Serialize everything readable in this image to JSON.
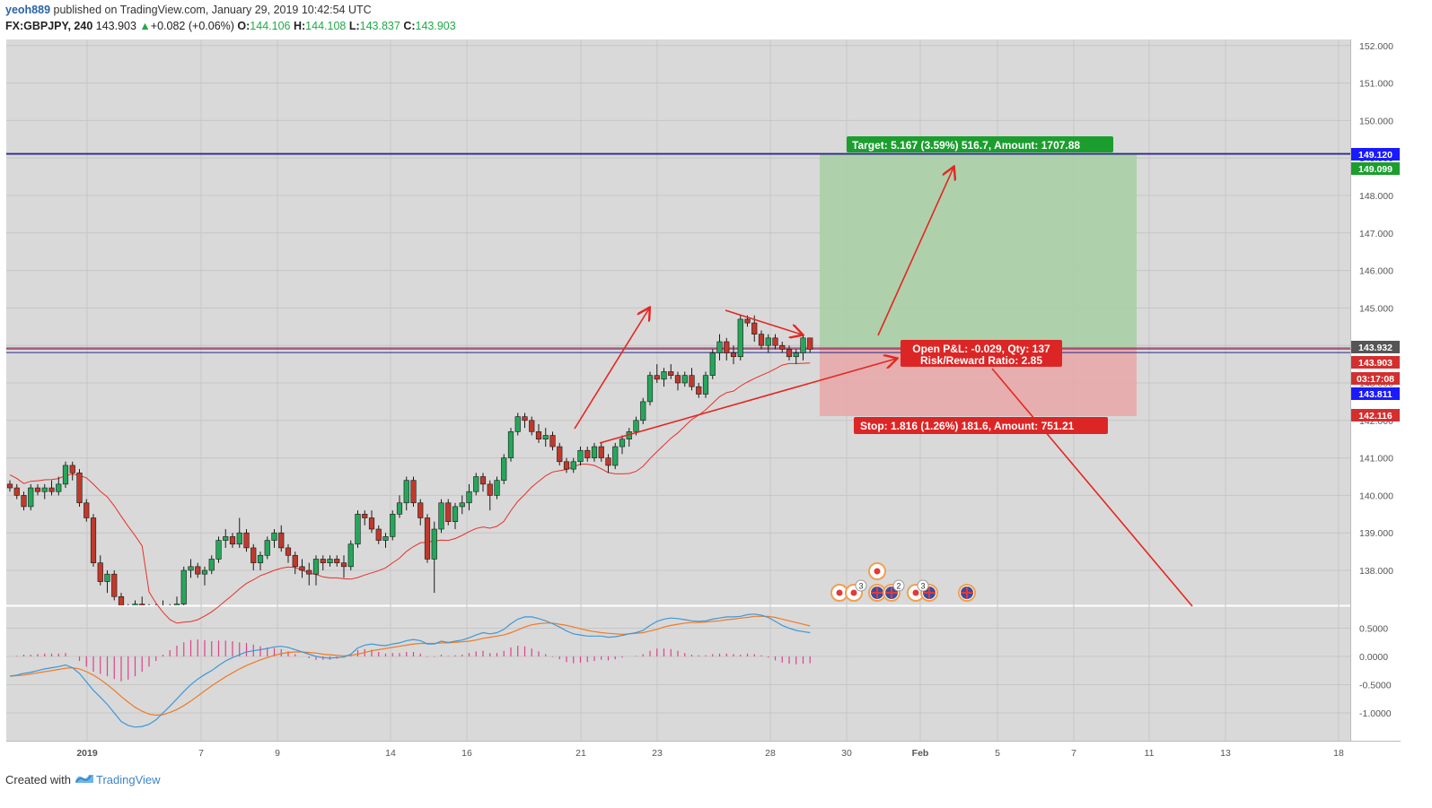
{
  "header": {
    "user": "yeoh889",
    "published_text": " published on TradingView.com, January 29, 2019 10:42:54 UTC",
    "symbol": "FX:GBPJPY, 240",
    "last": "143.903",
    "change_arrow": "▲",
    "change": "+0.082 (+0.06%)",
    "o_label": "O:",
    "o_value": "144.106",
    "h_label": "H:",
    "h_value": "144.108",
    "l_label": "L:",
    "l_value": "143.837",
    "c_label": "C:",
    "c_value": "143.903"
  },
  "footer": {
    "created_with": "Created with",
    "brand": "TradingView"
  },
  "colors": {
    "up": "#26a65b",
    "down": "#c0392b",
    "ma": "#e8302a",
    "macd": "#3d98d8",
    "signal": "#f07a25",
    "hist": "#e0408a",
    "target_zone": "#a9cfa5",
    "stop_zone": "#e7a9a8",
    "arrow": "#e52620"
  },
  "chart_data": {
    "type": "candlestick",
    "symbol": "FX:GBPJPY",
    "timeframe": "240",
    "price_axis": {
      "ticks": [
        138.0,
        139.0,
        140.0,
        141.0,
        142.0,
        143.0,
        144.0,
        145.0,
        146.0,
        147.0,
        148.0,
        149.0,
        150.0,
        151.0,
        152.0
      ],
      "decimals": 3
    },
    "x_axis_labels": [
      "2019",
      "7",
      "9",
      "14",
      "16",
      "21",
      "23",
      "28",
      "30",
      "Feb",
      "5",
      "7",
      "11",
      "13",
      "18"
    ],
    "price_tags": [
      {
        "value": "149.120",
        "color": "#1a1aff"
      },
      {
        "value": "149.099",
        "color": "#1b9e2e"
      },
      {
        "value": "143.932",
        "color": "#555555"
      },
      {
        "value": "143.903",
        "color": "#d32f2f"
      },
      {
        "value": "03:17:08",
        "color": "#d32f2f"
      },
      {
        "value": "143.811",
        "color": "#1a1aff"
      },
      {
        "value": "142.116",
        "color": "#d32f2f"
      }
    ],
    "position": {
      "entry": 143.932,
      "target": 149.099,
      "stop": 142.116,
      "target_label": "Target: 5.167 (3.59%) 516.7, Amount: 1707.88",
      "stop_label": "Stop: 1.816 (1.26%) 181.6, Amount: 751.21",
      "pnl_label": "Open P&L: -0.029, Qty: 137",
      "rr_label": "Risk/Reward Ratio: 2.85"
    },
    "horizontal_lines": [
      149.12,
      149.099,
      143.932,
      143.903,
      143.811
    ],
    "event_badges": [
      "3",
      "2",
      "3"
    ],
    "candles": [
      [
        140.3,
        140.4,
        140.1,
        140.2
      ],
      [
        140.2,
        140.3,
        139.9,
        140.0
      ],
      [
        140.0,
        140.1,
        139.6,
        139.7
      ],
      [
        139.7,
        140.3,
        139.6,
        140.2
      ],
      [
        140.2,
        140.3,
        140.0,
        140.1
      ],
      [
        140.1,
        140.3,
        139.9,
        140.2
      ],
      [
        140.2,
        140.4,
        140.0,
        140.1
      ],
      [
        140.1,
        140.5,
        140.0,
        140.3
      ],
      [
        140.3,
        140.9,
        140.2,
        140.8
      ],
      [
        140.8,
        140.9,
        140.4,
        140.6
      ],
      [
        140.6,
        140.7,
        139.7,
        139.8
      ],
      [
        139.8,
        139.9,
        139.3,
        139.4
      ],
      [
        139.4,
        139.5,
        138.1,
        138.2
      ],
      [
        138.2,
        138.4,
        137.6,
        137.7
      ],
      [
        137.7,
        138.0,
        137.4,
        137.9
      ],
      [
        137.9,
        138.0,
        137.2,
        137.3
      ],
      [
        137.3,
        137.4,
        136.6,
        136.8
      ],
      [
        136.8,
        137.1,
        136.6,
        137.0
      ],
      [
        137.0,
        137.2,
        136.8,
        137.1
      ],
      [
        137.1,
        137.3,
        136.9,
        137.0
      ],
      [
        137.0,
        137.1,
        136.7,
        136.9
      ],
      [
        136.9,
        137.1,
        136.7,
        137.0
      ],
      [
        137.0,
        137.2,
        136.8,
        136.9
      ],
      [
        136.9,
        137.1,
        136.8,
        137.0
      ],
      [
        137.0,
        137.3,
        136.9,
        137.1
      ],
      [
        137.1,
        138.1,
        137.0,
        138.0
      ],
      [
        138.0,
        138.3,
        137.8,
        138.1
      ],
      [
        138.1,
        138.2,
        137.8,
        137.9
      ],
      [
        137.9,
        138.1,
        137.6,
        138.0
      ],
      [
        138.0,
        138.4,
        137.9,
        138.3
      ],
      [
        138.3,
        138.9,
        138.2,
        138.8
      ],
      [
        138.8,
        139.1,
        138.6,
        138.9
      ],
      [
        138.9,
        139.0,
        138.6,
        138.7
      ],
      [
        138.7,
        139.4,
        138.6,
        139.0
      ],
      [
        139.0,
        139.1,
        138.5,
        138.6
      ],
      [
        138.6,
        138.7,
        138.0,
        138.2
      ],
      [
        138.2,
        138.5,
        138.0,
        138.4
      ],
      [
        138.4,
        138.9,
        138.3,
        138.8
      ],
      [
        138.8,
        139.1,
        138.6,
        139.0
      ],
      [
        139.0,
        139.2,
        138.5,
        138.6
      ],
      [
        138.6,
        138.7,
        138.2,
        138.4
      ],
      [
        138.4,
        138.5,
        137.9,
        138.1
      ],
      [
        138.1,
        138.3,
        137.8,
        138.0
      ],
      [
        138.0,
        138.2,
        137.6,
        137.9
      ],
      [
        137.9,
        138.4,
        137.6,
        138.3
      ],
      [
        138.3,
        138.4,
        138.0,
        138.2
      ],
      [
        138.2,
        138.4,
        138.1,
        138.3
      ],
      [
        138.3,
        138.4,
        138.1,
        138.2
      ],
      [
        138.2,
        138.4,
        137.8,
        138.1
      ],
      [
        138.1,
        138.8,
        138.0,
        138.7
      ],
      [
        138.7,
        139.6,
        138.6,
        139.5
      ],
      [
        139.5,
        139.6,
        139.2,
        139.4
      ],
      [
        139.4,
        139.6,
        139.0,
        139.1
      ],
      [
        139.1,
        139.2,
        138.7,
        138.8
      ],
      [
        138.8,
        139.0,
        138.6,
        138.9
      ],
      [
        138.9,
        139.6,
        138.8,
        139.5
      ],
      [
        139.5,
        140.0,
        139.4,
        139.8
      ],
      [
        139.8,
        140.5,
        139.6,
        140.4
      ],
      [
        140.4,
        140.5,
        139.7,
        139.8
      ],
      [
        139.8,
        139.9,
        139.2,
        139.4
      ],
      [
        139.4,
        139.5,
        138.2,
        138.3
      ],
      [
        138.3,
        139.3,
        137.4,
        139.1
      ],
      [
        139.1,
        139.9,
        139.0,
        139.8
      ],
      [
        139.8,
        139.9,
        139.2,
        139.3
      ],
      [
        139.3,
        139.8,
        139.1,
        139.7
      ],
      [
        139.7,
        140.0,
        139.5,
        139.8
      ],
      [
        139.8,
        140.3,
        139.6,
        140.1
      ],
      [
        140.1,
        140.6,
        140.0,
        140.5
      ],
      [
        140.5,
        140.6,
        140.1,
        140.3
      ],
      [
        140.3,
        140.4,
        139.6,
        140.0
      ],
      [
        140.0,
        140.5,
        139.9,
        140.4
      ],
      [
        140.4,
        141.1,
        140.3,
        141.0
      ],
      [
        141.0,
        141.8,
        140.9,
        141.7
      ],
      [
        141.7,
        142.2,
        141.6,
        142.1
      ],
      [
        142.1,
        142.2,
        141.8,
        142.0
      ],
      [
        142.0,
        142.1,
        141.6,
        141.7
      ],
      [
        141.7,
        141.9,
        141.4,
        141.5
      ],
      [
        141.5,
        141.8,
        141.3,
        141.6
      ],
      [
        141.6,
        141.7,
        141.2,
        141.3
      ],
      [
        141.3,
        141.4,
        140.8,
        140.9
      ],
      [
        140.9,
        141.0,
        140.6,
        140.7
      ],
      [
        140.7,
        141.0,
        140.6,
        140.9
      ],
      [
        140.9,
        141.3,
        140.8,
        141.2
      ],
      [
        141.2,
        141.3,
        140.9,
        141.0
      ],
      [
        141.0,
        141.4,
        140.9,
        141.3
      ],
      [
        141.3,
        141.4,
        140.9,
        141.0
      ],
      [
        141.0,
        141.1,
        140.6,
        140.8
      ],
      [
        140.8,
        141.4,
        140.7,
        141.3
      ],
      [
        141.3,
        141.6,
        141.1,
        141.5
      ],
      [
        141.5,
        141.8,
        141.3,
        141.7
      ],
      [
        141.7,
        142.1,
        141.6,
        142.0
      ],
      [
        142.0,
        142.6,
        141.9,
        142.5
      ],
      [
        142.5,
        143.3,
        142.4,
        143.2
      ],
      [
        143.2,
        143.5,
        143.0,
        143.1
      ],
      [
        143.1,
        143.4,
        142.9,
        143.3
      ],
      [
        143.3,
        143.5,
        143.1,
        143.2
      ],
      [
        143.2,
        143.3,
        142.8,
        143.0
      ],
      [
        143.0,
        143.3,
        142.9,
        143.2
      ],
      [
        143.2,
        143.4,
        142.8,
        142.9
      ],
      [
        142.9,
        143.0,
        142.6,
        142.7
      ],
      [
        142.7,
        143.3,
        142.6,
        143.2
      ],
      [
        143.2,
        143.9,
        143.1,
        143.8
      ],
      [
        143.8,
        144.3,
        143.6,
        144.1
      ],
      [
        144.1,
        144.2,
        143.6,
        143.8
      ],
      [
        143.8,
        144.0,
        143.5,
        143.7
      ],
      [
        143.7,
        144.8,
        143.6,
        144.7
      ],
      [
        144.7,
        144.8,
        144.5,
        144.6
      ],
      [
        144.6,
        144.8,
        144.1,
        144.3
      ],
      [
        144.3,
        144.4,
        143.9,
        144.0
      ],
      [
        144.0,
        144.3,
        143.8,
        144.2
      ],
      [
        144.2,
        144.3,
        143.9,
        144.0
      ],
      [
        144.0,
        144.1,
        143.8,
        143.9
      ],
      [
        143.9,
        144.0,
        143.6,
        143.7
      ],
      [
        143.7,
        143.9,
        143.5,
        143.8
      ],
      [
        143.8,
        144.3,
        143.6,
        144.2
      ],
      [
        144.2,
        144.2,
        143.8,
        143.9
      ]
    ],
    "indicator": {
      "name": "MACD",
      "axis_ticks": [
        "0.5000",
        "0.0000",
        "-0.5000",
        "-1.0000"
      ],
      "axis_values": [
        0.5,
        0.0,
        -0.5,
        -1.0
      ],
      "range": [
        -1.3,
        0.8
      ],
      "macd": [
        -0.35,
        -0.33,
        -0.3,
        -0.28,
        -0.25,
        -0.22,
        -0.2,
        -0.18,
        -0.15,
        -0.2,
        -0.3,
        -0.45,
        -0.6,
        -0.72,
        -0.85,
        -1.0,
        -1.15,
        -1.22,
        -1.25,
        -1.24,
        -1.2,
        -1.12,
        -1.0,
        -0.88,
        -0.75,
        -0.62,
        -0.5,
        -0.4,
        -0.32,
        -0.25,
        -0.16,
        -0.08,
        -0.02,
        0.03,
        0.08,
        0.1,
        0.12,
        0.14,
        0.17,
        0.18,
        0.16,
        0.12,
        0.08,
        0.04,
        0.0,
        -0.02,
        -0.03,
        -0.02,
        -0.01,
        0.04,
        0.15,
        0.2,
        0.22,
        0.2,
        0.19,
        0.22,
        0.24,
        0.28,
        0.3,
        0.28,
        0.22,
        0.22,
        0.27,
        0.25,
        0.27,
        0.29,
        0.33,
        0.38,
        0.42,
        0.4,
        0.42,
        0.48,
        0.58,
        0.66,
        0.7,
        0.7,
        0.67,
        0.63,
        0.58,
        0.52,
        0.45,
        0.4,
        0.38,
        0.36,
        0.36,
        0.36,
        0.34,
        0.35,
        0.37,
        0.4,
        0.42,
        0.46,
        0.55,
        0.62,
        0.66,
        0.68,
        0.67,
        0.65,
        0.63,
        0.62,
        0.63,
        0.66,
        0.68,
        0.7,
        0.7,
        0.71,
        0.74,
        0.75,
        0.73,
        0.69,
        0.62,
        0.55,
        0.5,
        0.46,
        0.44,
        0.42
      ],
      "signal": [
        -0.35,
        -0.34,
        -0.33,
        -0.31,
        -0.29,
        -0.27,
        -0.25,
        -0.23,
        -0.21,
        -0.2,
        -0.22,
        -0.27,
        -0.33,
        -0.41,
        -0.5,
        -0.6,
        -0.71,
        -0.81,
        -0.9,
        -0.97,
        -1.02,
        -1.04,
        -1.03,
        -0.99,
        -0.94,
        -0.87,
        -0.79,
        -0.7,
        -0.61,
        -0.52,
        -0.44,
        -0.36,
        -0.29,
        -0.22,
        -0.16,
        -0.11,
        -0.06,
        -0.02,
        0.02,
        0.05,
        0.07,
        0.08,
        0.08,
        0.07,
        0.06,
        0.04,
        0.03,
        0.02,
        0.01,
        0.02,
        0.04,
        0.07,
        0.1,
        0.12,
        0.14,
        0.16,
        0.18,
        0.2,
        0.22,
        0.23,
        0.23,
        0.23,
        0.24,
        0.24,
        0.25,
        0.26,
        0.27,
        0.29,
        0.32,
        0.34,
        0.36,
        0.38,
        0.42,
        0.47,
        0.52,
        0.56,
        0.58,
        0.59,
        0.59,
        0.57,
        0.55,
        0.52,
        0.49,
        0.46,
        0.44,
        0.42,
        0.41,
        0.4,
        0.39,
        0.4,
        0.41,
        0.42,
        0.45,
        0.48,
        0.52,
        0.55,
        0.57,
        0.59,
        0.6,
        0.6,
        0.61,
        0.62,
        0.63,
        0.65,
        0.66,
        0.68,
        0.69,
        0.71,
        0.71,
        0.71,
        0.69,
        0.66,
        0.63,
        0.6,
        0.57,
        0.54
      ]
    }
  }
}
